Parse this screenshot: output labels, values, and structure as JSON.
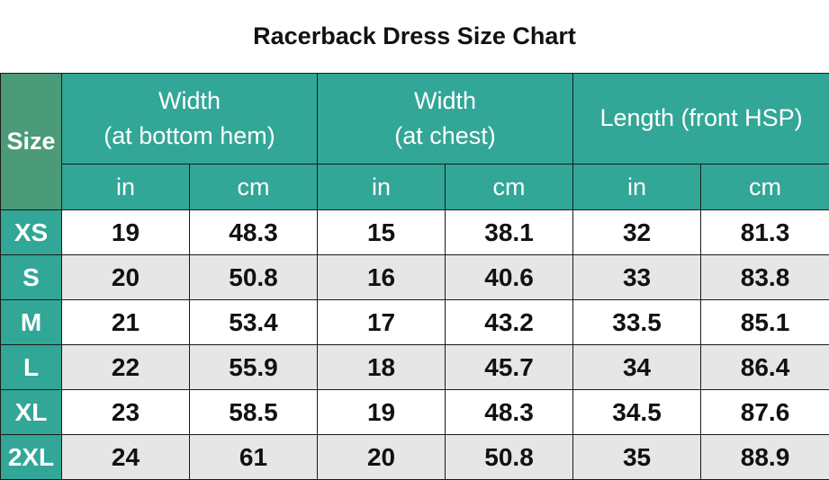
{
  "title": "Racerback Dress Size Chart",
  "colors": {
    "header_teal": "#32a697",
    "size_header": "#4b9a78",
    "alt_row": "#e6e6e6"
  },
  "columns": {
    "size_label": "Size",
    "groups": [
      {
        "line1": "Width",
        "line2": "(at bottom hem)"
      },
      {
        "line1": "Width",
        "line2": "(at chest)"
      },
      {
        "line1": "Length (front HSP)",
        "line2": ""
      }
    ],
    "units": [
      "in",
      "cm",
      "in",
      "cm",
      "in",
      "cm"
    ]
  },
  "rows": [
    {
      "size": "XS",
      "values": [
        "19",
        "48.3",
        "15",
        "38.1",
        "32",
        "81.3"
      ]
    },
    {
      "size": "S",
      "values": [
        "20",
        "50.8",
        "16",
        "40.6",
        "33",
        "83.8"
      ]
    },
    {
      "size": "M",
      "values": [
        "21",
        "53.4",
        "17",
        "43.2",
        "33.5",
        "85.1"
      ]
    },
    {
      "size": "L",
      "values": [
        "22",
        "55.9",
        "18",
        "45.7",
        "34",
        "86.4"
      ]
    },
    {
      "size": "XL",
      "values": [
        "23",
        "58.5",
        "19",
        "48.3",
        "34.5",
        "87.6"
      ]
    },
    {
      "size": "2XL",
      "values": [
        "24",
        "61",
        "20",
        "50.8",
        "35",
        "88.9"
      ]
    }
  ]
}
